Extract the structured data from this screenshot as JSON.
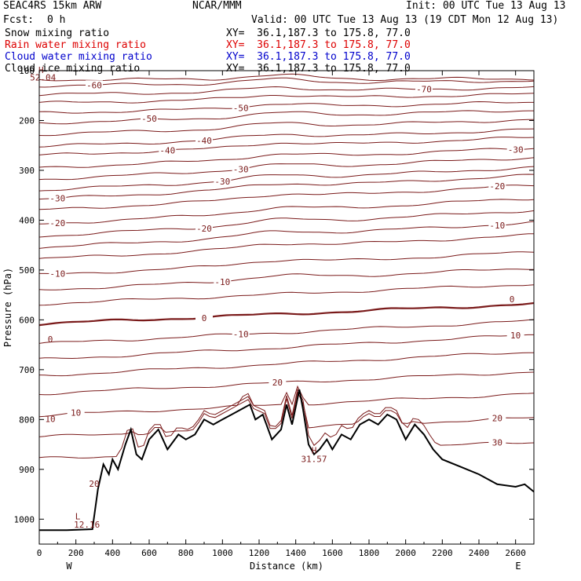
{
  "header": {
    "model": "SEAC4RS 15km ARW",
    "org": "NCAR/MMM",
    "init": "Init: 00 UTC Tue 13 Aug 13",
    "fcst_label": "Fcst:",
    "fcst_value": "0 h",
    "valid": "Valid: 00 UTC Tue 13 Aug 13 (19 CDT Mon 12 Aug 13)"
  },
  "legend": [
    {
      "name": "Snow mixing ratio",
      "xy": "XY=  36.1,187.3 to 175.8, 77.0",
      "color": "#000000"
    },
    {
      "name": "Rain water mixing ratio",
      "xy": "XY=  36.1,187.3 to 175.8, 77.0",
      "color": "#dd0000"
    },
    {
      "name": "Cloud water mixing ratio",
      "xy": "XY=  36.1,187.3 to 175.8, 77.0",
      "color": "#0000cc"
    },
    {
      "name": "Cloud ice mixing ratio",
      "xy": "XY=  36.1,187.3 to 175.8, 77.0",
      "color": "#000000"
    }
  ],
  "chart_data": {
    "type": "contour",
    "xlabel": "Distance (km)",
    "ylabel": "Pressure (hPa)",
    "xlim": [
      0,
      2700
    ],
    "ylim": [
      1050,
      100
    ],
    "x_ticks": [
      0,
      200,
      400,
      600,
      800,
      1000,
      1200,
      1400,
      1600,
      1800,
      2000,
      2200,
      2400,
      2600
    ],
    "y_ticks": [
      100,
      200,
      300,
      400,
      500,
      600,
      700,
      800,
      900,
      1000
    ],
    "y_tick_labels": [
      "100",
      "200",
      "300",
      "400",
      "500",
      "600",
      "700",
      "800",
      "900",
      "1000"
    ],
    "x_end_labels": {
      "left": "W",
      "right": "E"
    },
    "contour_color": "#7a1a1a",
    "contour_levels": [
      {
        "base": 118,
        "rise": 2,
        "label": null
      },
      {
        "base": 130,
        "rise": 10,
        "label": "-60",
        "lx": 300
      },
      {
        "base": 148,
        "rise": 14,
        "label": "-70",
        "lx": 2100
      },
      {
        "base": 165,
        "rise": 18,
        "label": null
      },
      {
        "base": 185,
        "rise": 22,
        "label": "-50",
        "lx": 1100
      },
      {
        "base": 205,
        "rise": 26,
        "label": "-50",
        "lx": 600
      },
      {
        "base": 228,
        "rise": 30,
        "label": null
      },
      {
        "base": 252,
        "rise": 34,
        "label": "-40",
        "lx": 900
      },
      {
        "base": 270,
        "rise": 36,
        "label": "-40",
        "lx": 700
      },
      {
        "base": 295,
        "rise": 40,
        "label": "-30",
        "lx": 2600
      },
      {
        "base": 318,
        "rise": 44,
        "label": "-30",
        "lx": 1100
      },
      {
        "base": 340,
        "rise": 46,
        "label": "-30",
        "lx": 1000
      },
      {
        "base": 358,
        "rise": 48,
        "label": "-30",
        "lx": 100
      },
      {
        "base": 380,
        "rise": 50,
        "label": "-20",
        "lx": 2500
      },
      {
        "base": 408,
        "rise": 52,
        "label": "-20",
        "lx": 100
      },
      {
        "base": 432,
        "rise": 52,
        "label": "-20",
        "lx": 900
      },
      {
        "base": 455,
        "rise": 50,
        "label": "-10",
        "lx": 2500
      },
      {
        "base": 478,
        "rise": 48,
        "label": null
      },
      {
        "base": 510,
        "rise": 46,
        "label": "-10",
        "lx": 100
      },
      {
        "base": 540,
        "rise": 44,
        "label": "-10",
        "lx": 1000
      },
      {
        "base": 568,
        "rise": 40,
        "label": null
      },
      {
        "base": 608,
        "rise": 40,
        "label": "0",
        "lx": 900,
        "bold": true
      },
      {
        "base": 648,
        "rise": 46,
        "label": "-10",
        "lx": 1100
      },
      {
        "base": 680,
        "rise": 50,
        "label": "10",
        "lx": 2600
      },
      {
        "base": 712,
        "rise": 48,
        "label": null
      },
      {
        "base": 748,
        "rise": 44,
        "label": "20",
        "lx": 1300
      },
      {
        "base": 792,
        "rise": 44,
        "label": "10",
        "lx": 200
      },
      {
        "base": 835,
        "rise": 38,
        "label": "20",
        "lx": 2500
      },
      {
        "base": 878,
        "rise": 32,
        "label": "30",
        "lx": 2500
      }
    ],
    "extra_labels": [
      {
        "text": "H",
        "x": 10,
        "p": 105
      },
      {
        "text": "52.04",
        "x": 20,
        "p": 120
      },
      {
        "text": "H",
        "x": 1500,
        "p": 868
      },
      {
        "text": "31.57",
        "x": 1500,
        "p": 885
      },
      {
        "text": "L",
        "x": 210,
        "p": 1000
      },
      {
        "text": "12.16",
        "x": 260,
        "p": 1017
      },
      {
        "text": "0",
        "x": 60,
        "p": 645
      },
      {
        "text": "0",
        "x": 2580,
        "p": 565
      },
      {
        "text": "20",
        "x": 300,
        "p": 935
      },
      {
        "text": "10",
        "x": 60,
        "p": 805
      }
    ],
    "terrain": {
      "x": [
        0,
        150,
        290,
        320,
        350,
        380,
        400,
        430,
        470,
        500,
        530,
        560,
        600,
        650,
        700,
        760,
        800,
        850,
        900,
        950,
        1000,
        1050,
        1100,
        1150,
        1180,
        1220,
        1270,
        1320,
        1350,
        1380,
        1420,
        1440,
        1470,
        1500,
        1530,
        1570,
        1600,
        1650,
        1700,
        1750,
        1800,
        1850,
        1900,
        1950,
        2000,
        2050,
        2100,
        2150,
        2200,
        2300,
        2400,
        2500,
        2600,
        2650,
        2700
      ],
      "p": [
        1022,
        1022,
        1020,
        940,
        890,
        910,
        880,
        900,
        850,
        820,
        870,
        880,
        840,
        820,
        860,
        830,
        840,
        830,
        800,
        810,
        800,
        790,
        780,
        770,
        800,
        790,
        840,
        820,
        770,
        810,
        740,
        780,
        850,
        870,
        860,
        840,
        860,
        830,
        840,
        810,
        800,
        810,
        790,
        800,
        840,
        810,
        830,
        860,
        880,
        895,
        910,
        930,
        935,
        930,
        945
      ]
    }
  }
}
